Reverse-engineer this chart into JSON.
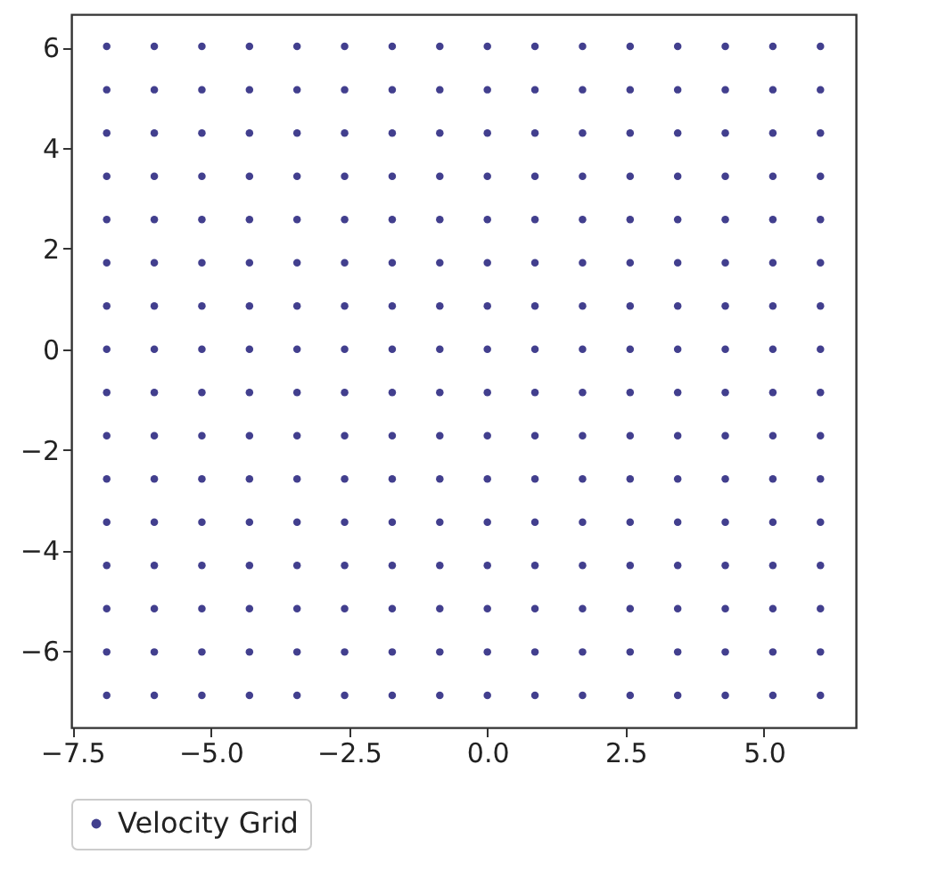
{
  "chart_data": {
    "type": "scatter",
    "xlim": [
      -7.52,
      6.66
    ],
    "ylim": [
      -7.52,
      6.66
    ],
    "xticks": [
      {
        "value": -7.5,
        "label": "−7.5"
      },
      {
        "value": -5,
        "label": "−5.0"
      },
      {
        "value": -2.5,
        "label": "−2.5"
      },
      {
        "value": 0,
        "label": "0.0"
      },
      {
        "value": 2.5,
        "label": "2.5"
      },
      {
        "value": 5,
        "label": "5.0"
      }
    ],
    "yticks": [
      {
        "value": -6,
        "label": "−6"
      },
      {
        "value": -4,
        "label": "−4"
      },
      {
        "value": -2,
        "label": "−2"
      },
      0,
      2,
      4,
      6
    ],
    "grid": false,
    "legend": "bottom",
    "marker": "circle",
    "series": [
      {
        "name": "Velocity Grid",
        "color": "#423f8e",
        "x": [
          -6.88,
          -6.02,
          -5.16,
          -4.3,
          -3.44,
          -2.58,
          -1.72,
          -0.86,
          0,
          0.86,
          1.72,
          2.58,
          3.44,
          4.3,
          5.16,
          6.02,
          -6.88,
          -6.02,
          -5.16,
          -4.3,
          -3.44,
          -2.58,
          -1.72,
          -0.86,
          0,
          0.86,
          1.72,
          2.58,
          3.44,
          4.3,
          5.16,
          6.02,
          -6.88,
          -6.02,
          -5.16,
          -4.3,
          -3.44,
          -2.58,
          -1.72,
          -0.86,
          0,
          0.86,
          1.72,
          2.58,
          3.44,
          4.3,
          5.16,
          6.02,
          -6.88,
          -6.02,
          -5.16,
          -4.3,
          -3.44,
          -2.58,
          -1.72,
          -0.86,
          0,
          0.86,
          1.72,
          2.58,
          3.44,
          4.3,
          5.16,
          6.02,
          -6.88,
          -6.02,
          -5.16,
          -4.3,
          -3.44,
          -2.58,
          -1.72,
          -0.86,
          0,
          0.86,
          1.72,
          2.58,
          3.44,
          4.3,
          5.16,
          6.02,
          -6.88,
          -6.02,
          -5.16,
          -4.3,
          -3.44,
          -2.58,
          -1.72,
          -0.86,
          0,
          0.86,
          1.72,
          2.58,
          3.44,
          4.3,
          5.16,
          6.02,
          -6.88,
          -6.02,
          -5.16,
          -4.3,
          -3.44,
          -2.58,
          -1.72,
          -0.86,
          0,
          0.86,
          1.72,
          2.58,
          3.44,
          4.3,
          5.16,
          6.02,
          -6.88,
          -6.02,
          -5.16,
          -4.3,
          -3.44,
          -2.58,
          -1.72,
          -0.86,
          0,
          0.86,
          1.72,
          2.58,
          3.44,
          4.3,
          5.16,
          6.02,
          -6.88,
          -6.02,
          -5.16,
          -4.3,
          -3.44,
          -2.58,
          -1.72,
          -0.86,
          0,
          0.86,
          1.72,
          2.58,
          3.44,
          4.3,
          5.16,
          6.02,
          -6.88,
          -6.02,
          -5.16,
          -4.3,
          -3.44,
          -2.58,
          -1.72,
          -0.86,
          0,
          0.86,
          1.72,
          2.58,
          3.44,
          4.3,
          5.16,
          6.02,
          -6.88,
          -6.02,
          -5.16,
          -4.3,
          -3.44,
          -2.58,
          -1.72,
          -0.86,
          0,
          0.86,
          1.72,
          2.58,
          3.44,
          4.3,
          5.16,
          6.02,
          -6.88,
          -6.02,
          -5.16,
          -4.3,
          -3.44,
          -2.58,
          -1.72,
          -0.86,
          0,
          0.86,
          1.72,
          2.58,
          3.44,
          4.3,
          5.16,
          6.02,
          -6.88,
          -6.02,
          -5.16,
          -4.3,
          -3.44,
          -2.58,
          -1.72,
          -0.86,
          0,
          0.86,
          1.72,
          2.58,
          3.44,
          4.3,
          5.16,
          6.02,
          -6.88,
          -6.02,
          -5.16,
          -4.3,
          -3.44,
          -2.58,
          -1.72,
          -0.86,
          0,
          0.86,
          1.72,
          2.58,
          3.44,
          4.3,
          5.16,
          6.02,
          -6.88,
          -6.02,
          -5.16,
          -4.3,
          -3.44,
          -2.58,
          -1.72,
          -0.86,
          0,
          0.86,
          1.72,
          2.58,
          3.44,
          4.3,
          5.16,
          6.02,
          -6.88,
          -6.02,
          -5.16,
          -4.3,
          -3.44,
          -2.58,
          -1.72,
          -0.86,
          0,
          0.86,
          1.72,
          2.58,
          3.44,
          4.3,
          5.16,
          6.02
        ],
        "values": [
          6.02,
          6.02,
          6.02,
          6.02,
          6.02,
          6.02,
          6.02,
          6.02,
          6.02,
          6.02,
          6.02,
          6.02,
          6.02,
          6.02,
          6.02,
          6.02,
          5.16,
          5.16,
          5.16,
          5.16,
          5.16,
          5.16,
          5.16,
          5.16,
          5.16,
          5.16,
          5.16,
          5.16,
          5.16,
          5.16,
          5.16,
          5.16,
          4.3,
          4.3,
          4.3,
          4.3,
          4.3,
          4.3,
          4.3,
          4.3,
          4.3,
          4.3,
          4.3,
          4.3,
          4.3,
          4.3,
          4.3,
          4.3,
          3.44,
          3.44,
          3.44,
          3.44,
          3.44,
          3.44,
          3.44,
          3.44,
          3.44,
          3.44,
          3.44,
          3.44,
          3.44,
          3.44,
          3.44,
          3.44,
          2.58,
          2.58,
          2.58,
          2.58,
          2.58,
          2.58,
          2.58,
          2.58,
          2.58,
          2.58,
          2.58,
          2.58,
          2.58,
          2.58,
          2.58,
          2.58,
          1.72,
          1.72,
          1.72,
          1.72,
          1.72,
          1.72,
          1.72,
          1.72,
          1.72,
          1.72,
          1.72,
          1.72,
          1.72,
          1.72,
          1.72,
          1.72,
          0.86,
          0.86,
          0.86,
          0.86,
          0.86,
          0.86,
          0.86,
          0.86,
          0.86,
          0.86,
          0.86,
          0.86,
          0.86,
          0.86,
          0.86,
          0.86,
          0,
          0,
          0,
          0,
          0,
          0,
          0,
          0,
          0,
          0,
          0,
          0,
          0,
          0,
          0,
          0,
          -0.86,
          -0.86,
          -0.86,
          -0.86,
          -0.86,
          -0.86,
          -0.86,
          -0.86,
          -0.86,
          -0.86,
          -0.86,
          -0.86,
          -0.86,
          -0.86,
          -0.86,
          -0.86,
          -1.72,
          -1.72,
          -1.72,
          -1.72,
          -1.72,
          -1.72,
          -1.72,
          -1.72,
          -1.72,
          -1.72,
          -1.72,
          -1.72,
          -1.72,
          -1.72,
          -1.72,
          -1.72,
          -2.58,
          -2.58,
          -2.58,
          -2.58,
          -2.58,
          -2.58,
          -2.58,
          -2.58,
          -2.58,
          -2.58,
          -2.58,
          -2.58,
          -2.58,
          -2.58,
          -2.58,
          -2.58,
          -3.44,
          -3.44,
          -3.44,
          -3.44,
          -3.44,
          -3.44,
          -3.44,
          -3.44,
          -3.44,
          -3.44,
          -3.44,
          -3.44,
          -3.44,
          -3.44,
          -3.44,
          -3.44,
          -4.3,
          -4.3,
          -4.3,
          -4.3,
          -4.3,
          -4.3,
          -4.3,
          -4.3,
          -4.3,
          -4.3,
          -4.3,
          -4.3,
          -4.3,
          -4.3,
          -4.3,
          -4.3,
          -5.16,
          -5.16,
          -5.16,
          -5.16,
          -5.16,
          -5.16,
          -5.16,
          -5.16,
          -5.16,
          -5.16,
          -5.16,
          -5.16,
          -5.16,
          -5.16,
          -5.16,
          -5.16,
          -6.02,
          -6.02,
          -6.02,
          -6.02,
          -6.02,
          -6.02,
          -6.02,
          -6.02,
          -6.02,
          -6.02,
          -6.02,
          -6.02,
          -6.02,
          -6.02,
          -6.02,
          -6.02,
          -6.88,
          -6.88,
          -6.88,
          -6.88,
          -6.88,
          -6.88,
          -6.88,
          -6.88,
          -6.88,
          -6.88,
          -6.88,
          -6.88,
          -6.88,
          -6.88,
          -6.88,
          -6.88
        ]
      }
    ]
  }
}
